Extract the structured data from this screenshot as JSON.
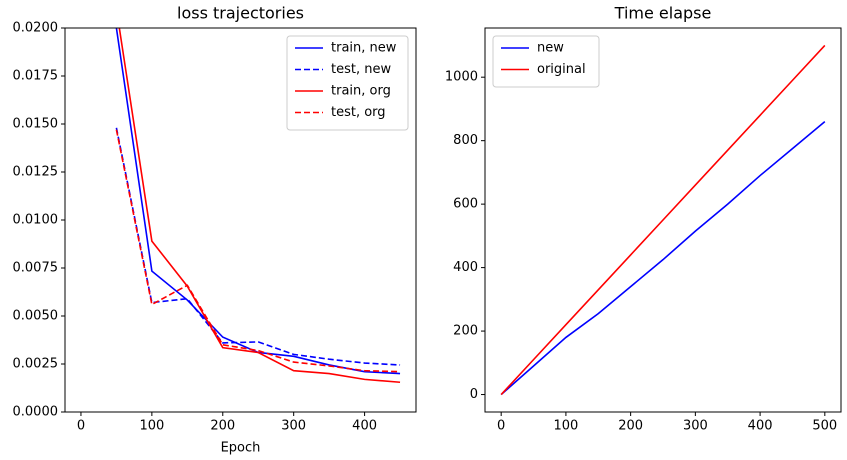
{
  "chart_data": [
    {
      "type": "line",
      "title": "loss trajectories",
      "xlabel": "Epoch",
      "x": [
        50,
        100,
        150,
        200,
        250,
        300,
        350,
        400,
        450
      ],
      "series": [
        {
          "name": "train, new",
          "color": "#0000ff",
          "linestyle": "solid",
          "values": [
            0.02,
            0.00734,
            0.00583,
            0.0039,
            0.0031,
            0.0029,
            0.00245,
            0.0021,
            0.002
          ]
        },
        {
          "name": "test, new",
          "color": "#0000ff",
          "linestyle": "dashed",
          "values": [
            0.0148,
            0.0057,
            0.0059,
            0.0036,
            0.00365,
            0.003,
            0.00275,
            0.00255,
            0.00245
          ]
        },
        {
          "name": "train, org",
          "color": "#ff0000",
          "linestyle": "solid",
          "values": [
            0.021,
            0.0089,
            0.00655,
            0.00335,
            0.0031,
            0.00215,
            0.002,
            0.0017,
            0.00155
          ]
        },
        {
          "name": "test, org",
          "color": "#ff0000",
          "linestyle": "dashed",
          "values": [
            0.0147,
            0.0056,
            0.0066,
            0.0035,
            0.0032,
            0.0026,
            0.0024,
            0.00215,
            0.0021
          ]
        }
      ],
      "xlim": [
        -22.5,
        472.5
      ],
      "xticks": [
        0,
        100,
        200,
        300,
        400
      ],
      "ylim": [
        0,
        0.02
      ],
      "yticks": [
        {
          "value": 0,
          "label": "0.0000"
        },
        {
          "value": 0.0025,
          "label": "0.0025"
        },
        {
          "value": 0.005,
          "label": "0.0050"
        },
        {
          "value": 0.0075,
          "label": "0.0075"
        },
        {
          "value": 0.01,
          "label": "0.0100"
        },
        {
          "value": 0.0125,
          "label": "0.0125"
        },
        {
          "value": 0.015,
          "label": "0.0150"
        },
        {
          "value": 0.0175,
          "label": "0.0175"
        },
        {
          "value": 0.02,
          "label": "0.0200"
        }
      ],
      "legend": "upper right"
    },
    {
      "type": "line",
      "title": "Time elapse",
      "x": [
        0,
        50,
        100,
        150,
        200,
        250,
        300,
        350,
        400,
        450,
        500
      ],
      "series": [
        {
          "name": "new",
          "color": "#0000ff",
          "linestyle": "solid",
          "values": [
            0,
            90,
            180,
            255,
            340,
            425,
            515,
            600,
            690,
            775,
            860
          ]
        },
        {
          "name": "original",
          "color": "#ff0000",
          "linestyle": "solid",
          "values": [
            0,
            110,
            220,
            330,
            440,
            550,
            660,
            770,
            880,
            990,
            1100
          ]
        }
      ],
      "xlim": [
        -25,
        525
      ],
      "xticks": [
        0,
        100,
        200,
        300,
        400,
        500
      ],
      "ylim": [
        -55,
        1155
      ],
      "yticks": [
        0,
        200,
        400,
        600,
        800,
        1000
      ],
      "legend": "upper left"
    }
  ]
}
